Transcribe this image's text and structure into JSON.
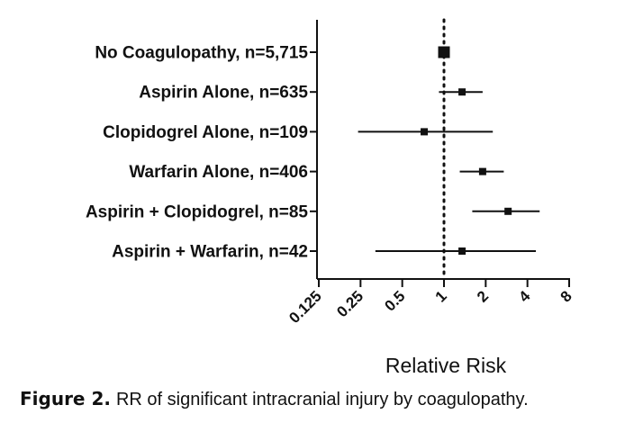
{
  "chart_data": {
    "type": "forest",
    "categories": [
      "No Coagulopathy, n=5,715",
      "Aspirin Alone, n=635",
      "Clopidogrel Alone, n=109",
      "Warfarin Alone, n=406",
      "Aspirin + Clopidogrel, n=85",
      "Aspirin + Warfarin, n=42"
    ],
    "estimates": [
      1.0,
      1.35,
      0.72,
      1.9,
      2.9,
      1.35
    ],
    "ci_lower": [
      1.0,
      0.92,
      0.24,
      1.3,
      1.6,
      0.32
    ],
    "ci_upper": [
      1.0,
      1.9,
      2.25,
      2.7,
      4.9,
      4.6
    ],
    "reference_line": 1,
    "x_scale": "log2",
    "xlim": [
      0.125,
      8
    ],
    "xticks": [
      0.125,
      0.25,
      0.5,
      1,
      2,
      4,
      8
    ],
    "xtick_labels": [
      "0.125",
      "0.25",
      "0.5",
      "1",
      "2",
      "4",
      "8"
    ],
    "xlabel": "Relative Risk",
    "ylabel": "",
    "title": "",
    "grid": false,
    "legend": "none"
  },
  "caption": {
    "label": "Figure 2.",
    "text": "RR of significant intracranial injury by coagulopathy."
  }
}
